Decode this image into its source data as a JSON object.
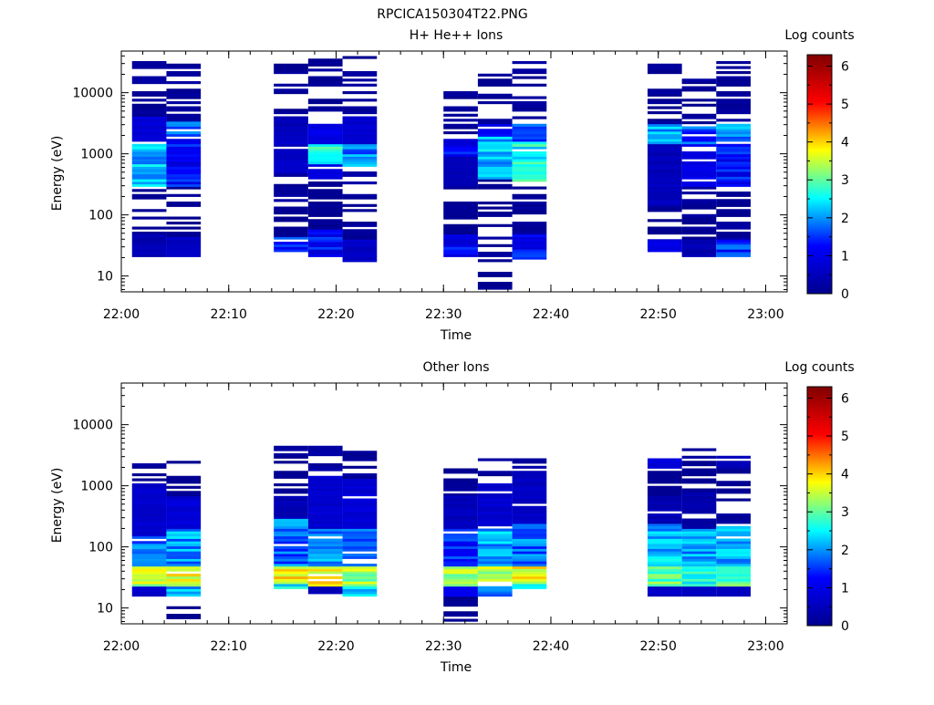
{
  "figure": {
    "title": "RPCICA150304T22.PNG"
  },
  "colormap": {
    "name": "jet",
    "stops": [
      "#00008f",
      "#0000ff",
      "#00ffff",
      "#ffff00",
      "#ff0000",
      "#800000"
    ]
  },
  "chart_data": [
    {
      "type": "heatmap",
      "title": "H+ He++ Ions",
      "xlabel": "Time",
      "ylabel": "Energy (eV)",
      "yscale": "log",
      "xlim": [
        "22:00",
        "23:02"
      ],
      "ylim": [
        5.5,
        48000
      ],
      "x_ticks": [
        "22:00",
        "22:10",
        "22:20",
        "22:30",
        "22:40",
        "22:50",
        "23:00"
      ],
      "y_ticks": [
        "10",
        "100",
        "1000",
        "10000"
      ],
      "colorbar": {
        "label": "Log counts",
        "range": [
          0,
          6.3
        ],
        "ticks": [
          "0",
          "1",
          "2",
          "3",
          "4",
          "5",
          "6"
        ]
      },
      "columns": [
        {
          "start": "22:01",
          "end": "22:04:12",
          "emin": 21,
          "emax": 32000,
          "bands": [
            [
              21,
              50,
              0.4
            ],
            [
              50,
              92,
              0
            ],
            [
              300,
              1500,
              2.2
            ],
            [
              1500,
              4000,
              0.8
            ],
            [
              4000,
              32000,
              0.1
            ]
          ]
        },
        {
          "start": "22:04:12",
          "end": "22:07:24",
          "emin": 21,
          "emax": 38000,
          "bands": [
            [
              21,
              45,
              0.6
            ],
            [
              45,
              90,
              0
            ],
            [
              150,
              260,
              0
            ],
            [
              300,
              1800,
              1.2
            ],
            [
              1800,
              3500,
              1.6
            ],
            [
              3500,
              38000,
              0.1
            ]
          ]
        },
        {
          "start": "22:14:12",
          "end": "22:17:24",
          "emin": 25,
          "emax": 38000,
          "bands": [
            [
              25,
              45,
              1.5
            ],
            [
              45,
              90,
              0
            ],
            [
              150,
              450,
              0.1
            ],
            [
              450,
              1800,
              0.6
            ],
            [
              1800,
              4000,
              0.5
            ],
            [
              4000,
              38000,
              0.1
            ]
          ]
        },
        {
          "start": "22:17:24",
          "end": "22:20:36",
          "emin": 21,
          "emax": 38000,
          "bands": [
            [
              21,
              60,
              1.2
            ],
            [
              60,
              200,
              0
            ],
            [
              400,
              700,
              1.0
            ],
            [
              700,
              1500,
              2.6
            ],
            [
              1500,
              3500,
              1.0
            ],
            [
              3500,
              38000,
              0.1
            ]
          ]
        },
        {
          "start": "22:20:36",
          "end": "22:23:48",
          "emin": 17,
          "emax": 38000,
          "bands": [
            [
              17,
              40,
              0.6
            ],
            [
              40,
              100,
              0.1
            ],
            [
              200,
              600,
              0.2
            ],
            [
              600,
              1500,
              1.9
            ],
            [
              1500,
              4000,
              0.7
            ],
            [
              4000,
              38000,
              0.1
            ]
          ]
        },
        {
          "start": "22:30",
          "end": "22:33:12",
          "emin": 21,
          "emax": 11000,
          "bands": [
            [
              21,
              50,
              1.1
            ],
            [
              50,
              150,
              0
            ],
            [
              300,
              900,
              0.5
            ],
            [
              900,
              1800,
              1.2
            ],
            [
              1800,
              11000,
              0.1
            ]
          ]
        },
        {
          "start": "22:33:12",
          "end": "22:36:24",
          "emin": 6,
          "emax": 24000,
          "bands": [
            [
              6,
              11,
              0
            ],
            [
              21,
              44,
              0.1
            ],
            [
              400,
              2000,
              2.2
            ],
            [
              2000,
              3000,
              1.4
            ],
            [
              3000,
              24000,
              0.1
            ]
          ]
        },
        {
          "start": "22:36:24",
          "end": "22:39:36",
          "emin": 18,
          "emax": 32000,
          "bands": [
            [
              18,
              50,
              1.2
            ],
            [
              50,
              200,
              0.1
            ],
            [
              350,
              1600,
              2.6
            ],
            [
              1600,
              3000,
              1.5
            ],
            [
              3000,
              32000,
              0.1
            ]
          ]
        },
        {
          "start": "22:49",
          "end": "22:52:12",
          "emin": 25,
          "emax": 38000,
          "bands": [
            [
              25,
              40,
              1.0
            ],
            [
              40,
              140,
              0
            ],
            [
              140,
              1500,
              0.5
            ],
            [
              1500,
              3200,
              2.1
            ],
            [
              3200,
              38000,
              0.1
            ]
          ]
        },
        {
          "start": "22:52:12",
          "end": "22:55:24",
          "emin": 21,
          "emax": 17000,
          "bands": [
            [
              21,
              40,
              0.4
            ],
            [
              40,
              300,
              0.1
            ],
            [
              300,
              1500,
              1.0
            ],
            [
              1500,
              3000,
              1.6
            ],
            [
              3000,
              17000,
              0.1
            ]
          ]
        },
        {
          "start": "22:55:24",
          "end": "22:58:36",
          "emin": 21,
          "emax": 38000,
          "bands": [
            [
              21,
              40,
              1.5
            ],
            [
              40,
              300,
              0.1
            ],
            [
              300,
              1500,
              1.2
            ],
            [
              1500,
              3200,
              2.0
            ],
            [
              3200,
              38000,
              0.1
            ]
          ]
        }
      ]
    },
    {
      "type": "heatmap",
      "title": "Other Ions",
      "xlabel": "Time",
      "ylabel": "Energy (eV)",
      "yscale": "log",
      "xlim": [
        "22:00",
        "23:02"
      ],
      "ylim": [
        5.5,
        48000
      ],
      "x_ticks": [
        "22:00",
        "22:10",
        "22:20",
        "22:30",
        "22:40",
        "22:50",
        "23:00"
      ],
      "y_ticks": [
        "10",
        "100",
        "1000",
        "10000"
      ],
      "colorbar": {
        "label": "Log counts",
        "range": [
          0,
          6.3
        ],
        "ticks": [
          "0",
          "1",
          "2",
          "3",
          "4",
          "5",
          "6"
        ]
      },
      "columns": [
        {
          "start": "22:01",
          "end": "22:04:12",
          "emin": 16,
          "emax": 2300,
          "bands": [
            [
              16,
              22,
              0.7
            ],
            [
              22,
              50,
              3.4
            ],
            [
              50,
              150,
              1.9
            ],
            [
              150,
              1100,
              0.7
            ],
            [
              1100,
              2300,
              0.1
            ]
          ]
        },
        {
          "start": "22:04:12",
          "end": "22:07:24",
          "emin": 6,
          "emax": 2700,
          "bands": [
            [
              6,
              11,
              0
            ],
            [
              16,
              22,
              2.1
            ],
            [
              22,
              50,
              3.7
            ],
            [
              50,
              200,
              2.0
            ],
            [
              200,
              700,
              0.8
            ],
            [
              2000,
              2700,
              0.1
            ]
          ]
        },
        {
          "start": "22:14:12",
          "end": "22:17:24",
          "emin": 21,
          "emax": 5100,
          "bands": [
            [
              21,
              26,
              2.5
            ],
            [
              26,
              50,
              3.8
            ],
            [
              50,
              300,
              1.8
            ],
            [
              300,
              700,
              0.4
            ],
            [
              2000,
              5100,
              0.1
            ]
          ]
        },
        {
          "start": "22:17:24",
          "end": "22:20:36",
          "emin": 16,
          "emax": 4800,
          "bands": [
            [
              16,
              22,
              0.5
            ],
            [
              22,
              50,
              3.8
            ],
            [
              50,
              200,
              2.0
            ],
            [
              200,
              1400,
              0.7
            ],
            [
              1400,
              4800,
              0.2
            ]
          ]
        },
        {
          "start": "22:20:36",
          "end": "22:23:48",
          "emin": 16,
          "emax": 4200,
          "bands": [
            [
              16,
              22,
              2.2
            ],
            [
              22,
              50,
              3.3
            ],
            [
              50,
              200,
              1.8
            ],
            [
              200,
              1300,
              0.8
            ],
            [
              1300,
              4200,
              0.1
            ]
          ]
        },
        {
          "start": "22:30",
          "end": "22:33:12",
          "emin": 6,
          "emax": 2400,
          "bands": [
            [
              6,
              16,
              0
            ],
            [
              16,
              22,
              1.0
            ],
            [
              22,
              50,
              3.4
            ],
            [
              50,
              200,
              1.4
            ],
            [
              200,
              700,
              0.5
            ],
            [
              700,
              2400,
              0.1
            ]
          ]
        },
        {
          "start": "22:33:12",
          "end": "22:36:24",
          "emin": 16,
          "emax": 3000,
          "bands": [
            [
              16,
              22,
              2.0
            ],
            [
              22,
              50,
              3.5
            ],
            [
              50,
              200,
              2.1
            ],
            [
              200,
              1100,
              0.7
            ],
            [
              1100,
              3000,
              0.1
            ]
          ]
        },
        {
          "start": "22:36:24",
          "end": "22:39:36",
          "emin": 21,
          "emax": 2800,
          "bands": [
            [
              21,
              26,
              2.3
            ],
            [
              26,
              50,
              3.7
            ],
            [
              50,
              250,
              1.8
            ],
            [
              250,
              1700,
              0.6
            ],
            [
              1700,
              2800,
              0.2
            ]
          ]
        },
        {
          "start": "22:49",
          "end": "22:52:12",
          "emin": 16,
          "emax": 2900,
          "bands": [
            [
              16,
              22,
              0.6
            ],
            [
              22,
              50,
              3.0
            ],
            [
              50,
              250,
              2.2
            ],
            [
              250,
              700,
              0.4
            ],
            [
              2000,
              2900,
              0.8
            ]
          ]
        },
        {
          "start": "22:52:12",
          "end": "22:55:24",
          "emin": 16,
          "emax": 4400,
          "bands": [
            [
              16,
              22,
              0.5
            ],
            [
              22,
              50,
              2.5
            ],
            [
              50,
              200,
              2.0
            ],
            [
              200,
              800,
              0.3
            ],
            [
              2000,
              4400,
              0.1
            ]
          ]
        },
        {
          "start": "22:55:24",
          "end": "22:58:36",
          "emin": 16,
          "emax": 3000,
          "bands": [
            [
              16,
              22,
              0.6
            ],
            [
              22,
              50,
              3.0
            ],
            [
              50,
              230,
              2.1
            ],
            [
              230,
              500,
              0.1
            ],
            [
              2000,
              3000,
              0.4
            ]
          ]
        }
      ]
    }
  ]
}
